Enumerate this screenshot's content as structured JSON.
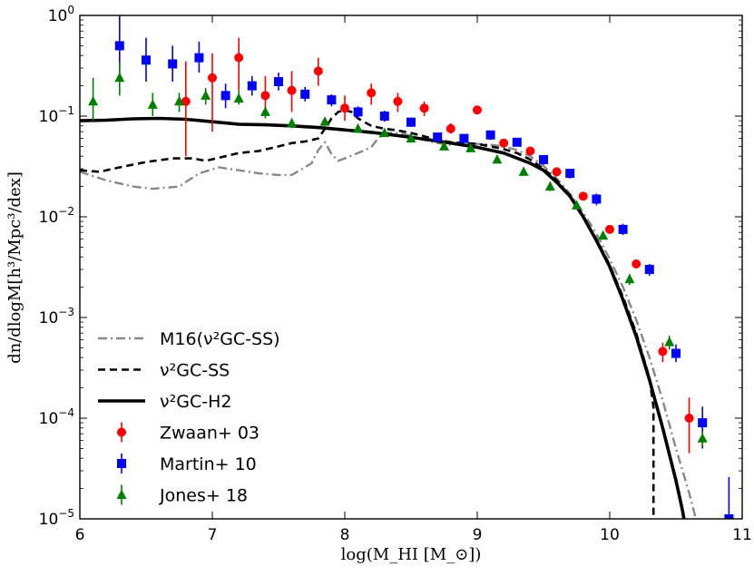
{
  "chart_data": {
    "type": "scatter",
    "title": "",
    "xlabel": "log(M_HI [M_⊙])",
    "ylabel": "dn/dlogM[h³/Mpc³/dex]",
    "xlim": [
      6,
      11
    ],
    "ylim": [
      1e-05,
      1
    ],
    "yscale": "log",
    "grid": false,
    "legend_position": "lower-left",
    "x_ticks": [
      "6",
      "7",
      "8",
      "9",
      "10",
      "11"
    ],
    "y_ticks": [
      {
        "value": 1e-05,
        "base": "10",
        "exp": "−5"
      },
      {
        "value": 0.0001,
        "base": "10",
        "exp": "−4"
      },
      {
        "value": 0.001,
        "base": "10",
        "exp": "−3"
      },
      {
        "value": 0.01,
        "base": "10",
        "exp": "−2"
      },
      {
        "value": 0.1,
        "base": "10",
        "exp": "−1"
      },
      {
        "value": 1,
        "base": "10",
        "exp": "0"
      }
    ],
    "lines": [
      {
        "name": "M16(ν²GC-SS)",
        "color": "#888888",
        "style": "dashdot",
        "points": [
          [
            6.0,
            0.028
          ],
          [
            6.2,
            0.023
          ],
          [
            6.4,
            0.02
          ],
          [
            6.55,
            0.019
          ],
          [
            6.75,
            0.02
          ],
          [
            6.9,
            0.027
          ],
          [
            7.05,
            0.031
          ],
          [
            7.2,
            0.029
          ],
          [
            7.35,
            0.027
          ],
          [
            7.5,
            0.026
          ],
          [
            7.6,
            0.026
          ],
          [
            7.75,
            0.034
          ],
          [
            7.8,
            0.046
          ],
          [
            7.85,
            0.055
          ],
          [
            7.9,
            0.042
          ],
          [
            7.95,
            0.036
          ],
          [
            8.0,
            0.038
          ],
          [
            8.1,
            0.043
          ],
          [
            8.2,
            0.049
          ],
          [
            8.25,
            0.06
          ],
          [
            8.3,
            0.068
          ],
          [
            8.4,
            0.068
          ],
          [
            8.5,
            0.064
          ],
          [
            8.6,
            0.058
          ],
          [
            8.7,
            0.054
          ],
          [
            8.8,
            0.052
          ],
          [
            8.9,
            0.053
          ],
          [
            9.0,
            0.053
          ],
          [
            9.1,
            0.052
          ],
          [
            9.2,
            0.05
          ],
          [
            9.3,
            0.046
          ],
          [
            9.4,
            0.04
          ],
          [
            9.5,
            0.032
          ],
          [
            9.6,
            0.024
          ],
          [
            9.7,
            0.017
          ],
          [
            9.8,
            0.011
          ],
          [
            9.9,
            0.0068
          ],
          [
            10.0,
            0.0038
          ],
          [
            10.1,
            0.002
          ],
          [
            10.2,
            0.00095
          ],
          [
            10.3,
            0.0004
          ],
          [
            10.4,
            0.00015
          ],
          [
            10.5,
            5e-05
          ],
          [
            10.6,
            1.8e-05
          ],
          [
            10.65,
            1e-05
          ]
        ]
      },
      {
        "name": "ν²GC-SS",
        "color": "#000000",
        "style": "dashed",
        "points": [
          [
            6.0,
            0.029
          ],
          [
            6.15,
            0.028
          ],
          [
            6.3,
            0.031
          ],
          [
            6.5,
            0.035
          ],
          [
            6.7,
            0.038
          ],
          [
            6.85,
            0.038
          ],
          [
            6.95,
            0.036
          ],
          [
            7.1,
            0.04
          ],
          [
            7.2,
            0.043
          ],
          [
            7.35,
            0.045
          ],
          [
            7.5,
            0.05
          ],
          [
            7.6,
            0.054
          ],
          [
            7.7,
            0.056
          ],
          [
            7.8,
            0.06
          ],
          [
            7.85,
            0.075
          ],
          [
            7.9,
            0.095
          ],
          [
            7.95,
            0.11
          ],
          [
            8.0,
            0.115
          ],
          [
            8.05,
            0.11
          ],
          [
            8.1,
            0.095
          ],
          [
            8.2,
            0.08
          ],
          [
            8.3,
            0.075
          ],
          [
            8.4,
            0.072
          ],
          [
            8.5,
            0.068
          ],
          [
            8.6,
            0.063
          ],
          [
            8.7,
            0.058
          ],
          [
            8.8,
            0.055
          ],
          [
            8.9,
            0.054
          ],
          [
            9.0,
            0.053
          ],
          [
            9.1,
            0.05
          ],
          [
            9.2,
            0.047
          ],
          [
            9.3,
            0.043
          ],
          [
            9.4,
            0.037
          ],
          [
            9.5,
            0.03
          ],
          [
            9.6,
            0.023
          ],
          [
            9.7,
            0.016
          ],
          [
            9.8,
            0.01
          ],
          [
            9.9,
            0.006
          ],
          [
            10.0,
            0.0033
          ],
          [
            10.1,
            0.0016
          ],
          [
            10.2,
            0.0007
          ],
          [
            10.3,
            0.00025
          ],
          [
            10.33,
            0.00013
          ],
          [
            10.33,
            1e-05
          ]
        ]
      },
      {
        "name": "ν²GC-H2",
        "color": "#000000",
        "style": "solid",
        "points": [
          [
            6.0,
            0.09
          ],
          [
            6.2,
            0.091
          ],
          [
            6.4,
            0.094
          ],
          [
            6.6,
            0.095
          ],
          [
            6.8,
            0.093
          ],
          [
            7.0,
            0.088
          ],
          [
            7.2,
            0.083
          ],
          [
            7.4,
            0.082
          ],
          [
            7.6,
            0.08
          ],
          [
            7.8,
            0.077
          ],
          [
            8.0,
            0.073
          ],
          [
            8.2,
            0.069
          ],
          [
            8.4,
            0.064
          ],
          [
            8.6,
            0.059
          ],
          [
            8.8,
            0.054
          ],
          [
            9.0,
            0.049
          ],
          [
            9.2,
            0.043
          ],
          [
            9.4,
            0.034
          ],
          [
            9.5,
            0.029
          ],
          [
            9.6,
            0.022
          ],
          [
            9.7,
            0.016
          ],
          [
            9.8,
            0.01
          ],
          [
            9.9,
            0.0058
          ],
          [
            10.0,
            0.0032
          ],
          [
            10.1,
            0.0015
          ],
          [
            10.2,
            0.00065
          ],
          [
            10.3,
            0.00024
          ],
          [
            10.4,
            8e-05
          ],
          [
            10.5,
            2.4e-05
          ],
          [
            10.55,
            1.2e-05
          ],
          [
            10.56,
            1e-05
          ]
        ]
      }
    ],
    "series": [
      {
        "name": "Zwaan+ 03",
        "color": "#ff0000",
        "marker": "circle",
        "points": [
          [
            6.8,
            0.14,
            0.04,
            0.35
          ],
          [
            7.0,
            0.24,
            0.07,
            0.42
          ],
          [
            7.2,
            0.38,
            0.18,
            0.6
          ],
          [
            7.4,
            0.16,
            0.1,
            0.25
          ],
          [
            7.6,
            0.18,
            0.11,
            0.28
          ],
          [
            7.8,
            0.28,
            0.2,
            0.38
          ],
          [
            8.0,
            0.12,
            0.09,
            0.16
          ],
          [
            8.2,
            0.17,
            0.13,
            0.21
          ],
          [
            8.4,
            0.14,
            0.11,
            0.17
          ],
          [
            8.6,
            0.12,
            0.1,
            0.14
          ],
          [
            8.8,
            0.075,
            0.067,
            0.085
          ],
          [
            9.0,
            0.115,
            0.106,
            0.125
          ],
          [
            9.2,
            0.054,
            0.05,
            0.058
          ],
          [
            9.4,
            0.045,
            0.042,
            0.048
          ],
          [
            9.6,
            0.028,
            0.026,
            0.03
          ],
          [
            9.8,
            0.016,
            0.015,
            0.017
          ],
          [
            10.0,
            0.0075,
            0.007,
            0.008
          ],
          [
            10.2,
            0.0034,
            0.0031,
            0.0037
          ],
          [
            10.4,
            0.00046,
            0.00036,
            0.00056
          ],
          [
            10.6,
            0.0001,
            4.5e-05,
            0.00016
          ]
        ]
      },
      {
        "name": "Martin+ 10",
        "color": "#0000ff",
        "marker": "square",
        "points": [
          [
            6.3,
            0.5,
            0.25,
            1.0
          ],
          [
            6.5,
            0.36,
            0.22,
            0.6
          ],
          [
            6.7,
            0.33,
            0.22,
            0.5
          ],
          [
            6.9,
            0.38,
            0.27,
            0.55
          ],
          [
            7.1,
            0.16,
            0.12,
            0.21
          ],
          [
            7.3,
            0.2,
            0.16,
            0.25
          ],
          [
            7.5,
            0.22,
            0.18,
            0.27
          ],
          [
            7.7,
            0.165,
            0.14,
            0.195
          ],
          [
            7.9,
            0.145,
            0.125,
            0.165
          ],
          [
            8.1,
            0.11,
            0.095,
            0.125
          ],
          [
            8.3,
            0.1,
            0.088,
            0.113
          ],
          [
            8.5,
            0.087,
            0.078,
            0.097
          ],
          [
            8.7,
            0.062,
            0.056,
            0.068
          ],
          [
            8.9,
            0.06,
            0.055,
            0.065
          ],
          [
            9.1,
            0.065,
            0.058,
            0.072
          ],
          [
            9.3,
            0.055,
            0.05,
            0.06
          ],
          [
            9.5,
            0.037,
            0.033,
            0.041
          ],
          [
            9.7,
            0.027,
            0.024,
            0.03
          ],
          [
            9.9,
            0.015,
            0.013,
            0.017
          ],
          [
            10.1,
            0.0075,
            0.0066,
            0.0085
          ],
          [
            10.3,
            0.003,
            0.0026,
            0.0034
          ],
          [
            10.5,
            0.00044,
            0.00036,
            0.00054
          ],
          [
            10.7,
            9e-05,
            5e-05,
            0.00013
          ],
          [
            10.9,
            1e-05,
            1e-05,
            2.6e-05
          ]
        ]
      },
      {
        "name": "Jones+ 18",
        "color": "#008000",
        "marker": "triangle",
        "points": [
          [
            6.1,
            0.14,
            0.09,
            0.24
          ],
          [
            6.3,
            0.24,
            0.16,
            0.34
          ],
          [
            6.55,
            0.13,
            0.1,
            0.17
          ],
          [
            6.75,
            0.14,
            0.11,
            0.17
          ],
          [
            6.95,
            0.16,
            0.13,
            0.19
          ],
          [
            7.2,
            0.15,
            0.13,
            0.18
          ],
          [
            7.4,
            0.11,
            0.095,
            0.125
          ],
          [
            7.6,
            0.085,
            0.076,
            0.095
          ],
          [
            7.85,
            0.088,
            0.08,
            0.096
          ],
          [
            8.1,
            0.075,
            0.068,
            0.082
          ],
          [
            8.3,
            0.068,
            0.062,
            0.074
          ],
          [
            8.5,
            0.06,
            0.055,
            0.065
          ],
          [
            8.75,
            0.05,
            0.046,
            0.054
          ],
          [
            8.95,
            0.048,
            0.044,
            0.052
          ],
          [
            9.15,
            0.037,
            0.034,
            0.04
          ],
          [
            9.35,
            0.028,
            0.026,
            0.03
          ],
          [
            9.55,
            0.02,
            0.018,
            0.022
          ],
          [
            9.75,
            0.013,
            0.012,
            0.014
          ],
          [
            9.95,
            0.0065,
            0.006,
            0.0071
          ],
          [
            10.15,
            0.0024,
            0.0021,
            0.0027
          ],
          [
            10.45,
            0.00057,
            0.00048,
            0.00066
          ],
          [
            10.7,
            6.3e-05,
            5.3e-05,
            7.3e-05
          ]
        ]
      }
    ],
    "legend": [
      {
        "label": "M16(ν²GC-SS)",
        "kind": "line",
        "ref": "lines.0"
      },
      {
        "label": "ν²GC-SS",
        "kind": "line",
        "ref": "lines.1"
      },
      {
        "label": "ν²GC-H2",
        "kind": "line",
        "ref": "lines.2"
      },
      {
        "label": "Zwaan+ 03",
        "kind": "marker",
        "ref": "series.0"
      },
      {
        "label": "Martin+ 10",
        "kind": "marker",
        "ref": "series.1"
      },
      {
        "label": "Jones+ 18",
        "kind": "marker",
        "ref": "series.2"
      }
    ]
  }
}
